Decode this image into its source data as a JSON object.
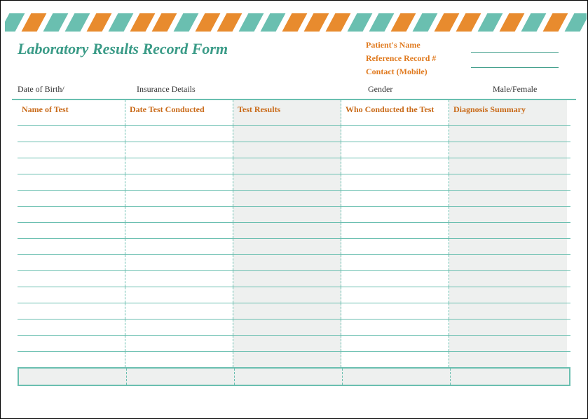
{
  "colors": {
    "teal": "#6abfb0",
    "orange": "#e88b2e",
    "title": "#3a9b87",
    "patient_label": "#e07a1f",
    "line": "#3a9b87",
    "table_border": "#6abfb0",
    "header_text": "#c96a18",
    "dashed": "#6abfb0",
    "row_border": "#6abfb0",
    "shade_bg": "#eef0ef",
    "meta_text": "#333333"
  },
  "title": "Laboratory Results Record Form",
  "patient": {
    "name_label": "Patient's Name",
    "ref_label": "Reference Record #",
    "contact_label": "Contact (Mobile)"
  },
  "meta": {
    "dob": "Date of Birth/",
    "insurance": "Insurance Details",
    "gender": "Gender",
    "gender_value": "Male/Female"
  },
  "columns": {
    "c1": "Name of Test",
    "c2": "Date Test Conducted",
    "c3": "Test Results",
    "c4": "Who Conducted the Test",
    "c5": "Diagnosis Summary"
  },
  "row_count": 15,
  "stripe_pattern": [
    "teal",
    "orange",
    "teal",
    "teal",
    "orange",
    "teal",
    "orange",
    "orange",
    "teal",
    "orange",
    "orange",
    "teal",
    "teal",
    "orange",
    "orange",
    "orange",
    "teal",
    "teal",
    "orange",
    "teal",
    "orange",
    "orange",
    "teal",
    "orange",
    "teal",
    "orange",
    "teal"
  ]
}
